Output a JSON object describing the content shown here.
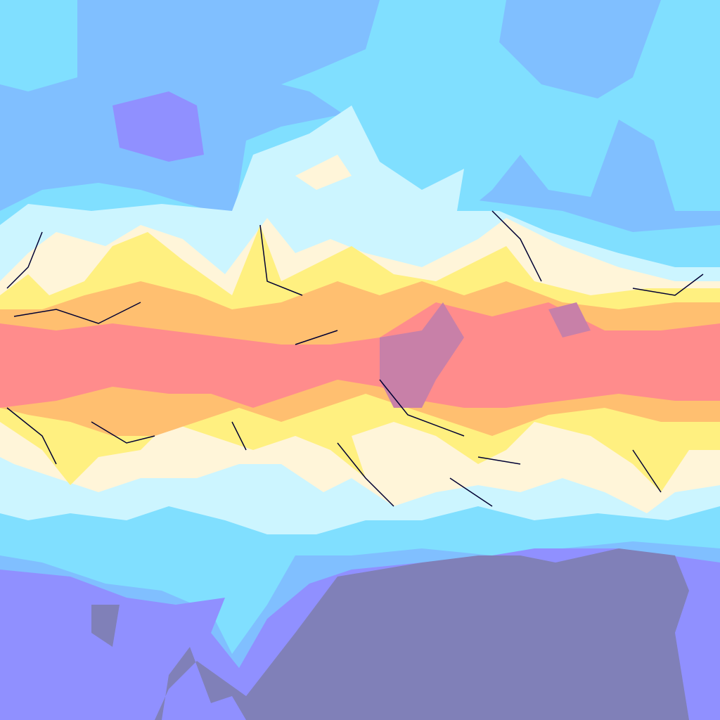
{
  "map": {
    "palette": {
      "band_blue": "#80bfff",
      "band_cyan": "#80dfff",
      "band_pale_cyan": "#ccf5ff",
      "band_cream": "#fff5d9",
      "band_yellow": "#fff080",
      "band_orange": "#ffbf70",
      "band_salmon": "#ff8c8c",
      "band_mauve": "#c880a8",
      "band_violet": "#9090ff",
      "band_slate": "#8080b8",
      "contour_line": "#000033"
    }
  }
}
